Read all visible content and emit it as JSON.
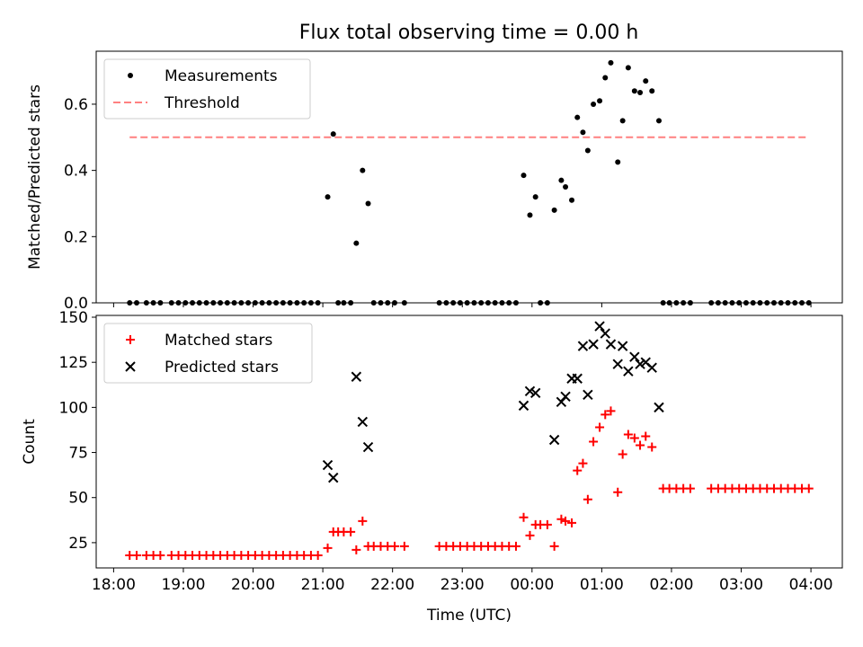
{
  "figure": {
    "title": "Flux total observing time = 0.00 h"
  },
  "chart_data": [
    {
      "type": "scatter",
      "panel": "top",
      "title": "Flux total observing time = 0.00 h",
      "xlabel": "",
      "ylabel": "Matched/Predicted stars",
      "x_unit": "hours since 18:00 UTC",
      "xlim": [
        -0.25,
        10.45
      ],
      "ylim": [
        0.0,
        0.76
      ],
      "xticks": [
        "18:00",
        "19:00",
        "20:00",
        "21:00",
        "22:00",
        "23:00",
        "00:00",
        "01:00",
        "02:00",
        "03:00",
        "04:00"
      ],
      "yticks": [
        "0.0",
        "0.2",
        "0.4",
        "0.6"
      ],
      "yticks_values": [
        0.0,
        0.2,
        0.4,
        0.6
      ],
      "grid": false,
      "legend": "top-left",
      "series": [
        {
          "name": "Measurements",
          "color": "#000000",
          "marker": "dot",
          "points": [
            [
              0.23,
              0
            ],
            [
              0.33,
              0
            ],
            [
              0.47,
              0
            ],
            [
              0.57,
              0
            ],
            [
              0.67,
              0
            ],
            [
              0.83,
              0
            ],
            [
              0.93,
              0
            ],
            [
              1.03,
              0
            ],
            [
              1.13,
              0
            ],
            [
              1.23,
              0
            ],
            [
              1.33,
              0
            ],
            [
              1.43,
              0
            ],
            [
              1.53,
              0
            ],
            [
              1.63,
              0
            ],
            [
              1.73,
              0
            ],
            [
              1.83,
              0
            ],
            [
              1.93,
              0
            ],
            [
              2.03,
              0
            ],
            [
              2.13,
              0
            ],
            [
              2.23,
              0
            ],
            [
              2.33,
              0
            ],
            [
              2.43,
              0
            ],
            [
              2.53,
              0
            ],
            [
              2.63,
              0
            ],
            [
              2.73,
              0
            ],
            [
              2.83,
              0
            ],
            [
              2.93,
              0
            ],
            [
              3.07,
              0.32
            ],
            [
              3.15,
              0.51
            ],
            [
              3.22,
              0
            ],
            [
              3.3,
              0
            ],
            [
              3.4,
              0
            ],
            [
              3.48,
              0.18
            ],
            [
              3.57,
              0.4
            ],
            [
              3.65,
              0.3
            ],
            [
              3.73,
              0
            ],
            [
              3.83,
              0
            ],
            [
              3.93,
              0
            ],
            [
              4.03,
              0
            ],
            [
              4.17,
              0
            ],
            [
              4.67,
              0
            ],
            [
              4.77,
              0
            ],
            [
              4.87,
              0
            ],
            [
              4.97,
              0
            ],
            [
              5.07,
              0
            ],
            [
              5.17,
              0
            ],
            [
              5.27,
              0
            ],
            [
              5.37,
              0
            ],
            [
              5.47,
              0
            ],
            [
              5.57,
              0
            ],
            [
              5.67,
              0
            ],
            [
              5.77,
              0
            ],
            [
              5.88,
              0.385
            ],
            [
              5.97,
              0.265
            ],
            [
              6.05,
              0.32
            ],
            [
              6.12,
              0
            ],
            [
              6.22,
              0
            ],
            [
              6.32,
              0.28
            ],
            [
              6.42,
              0.37
            ],
            [
              6.48,
              0.35
            ],
            [
              6.57,
              0.31
            ],
            [
              6.65,
              0.56
            ],
            [
              6.73,
              0.515
            ],
            [
              6.8,
              0.46
            ],
            [
              6.88,
              0.6
            ],
            [
              6.97,
              0.61
            ],
            [
              7.05,
              0.68
            ],
            [
              7.13,
              0.725
            ],
            [
              7.23,
              0.425
            ],
            [
              7.3,
              0.55
            ],
            [
              7.38,
              0.71
            ],
            [
              7.47,
              0.64
            ],
            [
              7.55,
              0.635
            ],
            [
              7.63,
              0.67
            ],
            [
              7.72,
              0.64
            ],
            [
              7.82,
              0.55
            ],
            [
              7.88,
              0
            ],
            [
              7.97,
              0
            ],
            [
              8.07,
              0
            ],
            [
              8.17,
              0
            ],
            [
              8.27,
              0
            ],
            [
              8.57,
              0
            ],
            [
              8.67,
              0
            ],
            [
              8.77,
              0
            ],
            [
              8.87,
              0
            ],
            [
              8.97,
              0
            ],
            [
              9.07,
              0
            ],
            [
              9.17,
              0
            ],
            [
              9.27,
              0
            ],
            [
              9.37,
              0
            ],
            [
              9.47,
              0
            ],
            [
              9.57,
              0
            ],
            [
              9.67,
              0
            ],
            [
              9.77,
              0
            ],
            [
              9.87,
              0
            ],
            [
              9.97,
              0
            ]
          ]
        },
        {
          "name": "Threshold",
          "color": "#ff8080",
          "style": "dashed",
          "points": [
            [
              0.23,
              0.5
            ],
            [
              9.97,
              0.5
            ]
          ]
        }
      ]
    },
    {
      "type": "scatter",
      "panel": "bottom",
      "title": "",
      "xlabel": "Time (UTC)",
      "ylabel": "Count",
      "x_unit": "hours since 18:00 UTC",
      "xlim": [
        -0.25,
        10.45
      ],
      "ylim": [
        11,
        151
      ],
      "xticks": [
        "18:00",
        "19:00",
        "20:00",
        "21:00",
        "22:00",
        "23:00",
        "00:00",
        "01:00",
        "02:00",
        "03:00",
        "04:00"
      ],
      "yticks": [
        "25",
        "50",
        "75",
        "100",
        "125",
        "150"
      ],
      "yticks_values": [
        25,
        50,
        75,
        100,
        125,
        150
      ],
      "grid": false,
      "legend": "top-left",
      "series": [
        {
          "name": "Matched stars",
          "color": "#ff0000",
          "marker": "plus",
          "points": [
            [
              0.23,
              18
            ],
            [
              0.33,
              18
            ],
            [
              0.47,
              18
            ],
            [
              0.57,
              18
            ],
            [
              0.67,
              18
            ],
            [
              0.83,
              18
            ],
            [
              0.93,
              18
            ],
            [
              1.03,
              18
            ],
            [
              1.13,
              18
            ],
            [
              1.23,
              18
            ],
            [
              1.33,
              18
            ],
            [
              1.43,
              18
            ],
            [
              1.53,
              18
            ],
            [
              1.63,
              18
            ],
            [
              1.73,
              18
            ],
            [
              1.83,
              18
            ],
            [
              1.93,
              18
            ],
            [
              2.03,
              18
            ],
            [
              2.13,
              18
            ],
            [
              2.23,
              18
            ],
            [
              2.33,
              18
            ],
            [
              2.43,
              18
            ],
            [
              2.53,
              18
            ],
            [
              2.63,
              18
            ],
            [
              2.73,
              18
            ],
            [
              2.83,
              18
            ],
            [
              2.93,
              18
            ],
            [
              3.07,
              22
            ],
            [
              3.15,
              31
            ],
            [
              3.22,
              31
            ],
            [
              3.3,
              31
            ],
            [
              3.4,
              31
            ],
            [
              3.48,
              21
            ],
            [
              3.57,
              37
            ],
            [
              3.65,
              23
            ],
            [
              3.73,
              23
            ],
            [
              3.83,
              23
            ],
            [
              3.93,
              23
            ],
            [
              4.03,
              23
            ],
            [
              4.17,
              23
            ],
            [
              4.67,
              23
            ],
            [
              4.77,
              23
            ],
            [
              4.87,
              23
            ],
            [
              4.97,
              23
            ],
            [
              5.07,
              23
            ],
            [
              5.17,
              23
            ],
            [
              5.27,
              23
            ],
            [
              5.37,
              23
            ],
            [
              5.47,
              23
            ],
            [
              5.57,
              23
            ],
            [
              5.67,
              23
            ],
            [
              5.77,
              23
            ],
            [
              5.88,
              39
            ],
            [
              5.97,
              29
            ],
            [
              6.05,
              35
            ],
            [
              6.12,
              35
            ],
            [
              6.22,
              35
            ],
            [
              6.32,
              23
            ],
            [
              6.42,
              38
            ],
            [
              6.48,
              37
            ],
            [
              6.57,
              36
            ],
            [
              6.65,
              65
            ],
            [
              6.73,
              69
            ],
            [
              6.8,
              49
            ],
            [
              6.88,
              81
            ],
            [
              6.97,
              89
            ],
            [
              7.05,
              96
            ],
            [
              7.13,
              98
            ],
            [
              7.23,
              53
            ],
            [
              7.3,
              74
            ],
            [
              7.38,
              85
            ],
            [
              7.47,
              83
            ],
            [
              7.55,
              79
            ],
            [
              7.63,
              84
            ],
            [
              7.72,
              78
            ],
            [
              7.88,
              55
            ],
            [
              7.97,
              55
            ],
            [
              8.07,
              55
            ],
            [
              8.17,
              55
            ],
            [
              8.27,
              55
            ],
            [
              8.57,
              55
            ],
            [
              8.67,
              55
            ],
            [
              8.77,
              55
            ],
            [
              8.87,
              55
            ],
            [
              8.97,
              55
            ],
            [
              9.07,
              55
            ],
            [
              9.17,
              55
            ],
            [
              9.27,
              55
            ],
            [
              9.37,
              55
            ],
            [
              9.47,
              55
            ],
            [
              9.57,
              55
            ],
            [
              9.67,
              55
            ],
            [
              9.77,
              55
            ],
            [
              9.87,
              55
            ],
            [
              9.97,
              55
            ]
          ]
        },
        {
          "name": "Predicted stars",
          "color": "#000000",
          "marker": "x",
          "points": [
            [
              3.07,
              68
            ],
            [
              3.15,
              61
            ],
            [
              3.48,
              117
            ],
            [
              3.57,
              92
            ],
            [
              3.65,
              78
            ],
            [
              5.88,
              101
            ],
            [
              5.97,
              109
            ],
            [
              6.05,
              108
            ],
            [
              6.32,
              82
            ],
            [
              6.42,
              103
            ],
            [
              6.48,
              106
            ],
            [
              6.57,
              116
            ],
            [
              6.65,
              116
            ],
            [
              6.73,
              134
            ],
            [
              6.8,
              107
            ],
            [
              6.88,
              135
            ],
            [
              6.97,
              145
            ],
            [
              7.05,
              141
            ],
            [
              7.13,
              135
            ],
            [
              7.23,
              124
            ],
            [
              7.3,
              134
            ],
            [
              7.38,
              120
            ],
            [
              7.47,
              128
            ],
            [
              7.55,
              124
            ],
            [
              7.63,
              125
            ],
            [
              7.72,
              122
            ],
            [
              7.82,
              100
            ]
          ]
        }
      ]
    }
  ]
}
